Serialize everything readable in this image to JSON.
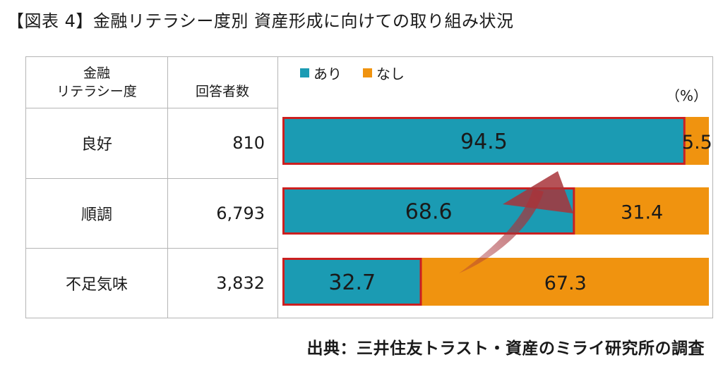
{
  "title": "【図表 4】金融リテラシー度別  資産形成に向けての取り組み状況",
  "table": {
    "col1_header_line1": "金融",
    "col1_header_line2": "リテラシー度",
    "col2_header": "回答者数",
    "rows": [
      {
        "label": "良好",
        "count": "810"
      },
      {
        "label": "順調",
        "count": "6,793"
      },
      {
        "label": "不足気味",
        "count": "3,832"
      }
    ]
  },
  "legend": {
    "yes_label": "あり",
    "no_label": "なし"
  },
  "unit": "（%）",
  "source": "出典：三井住友トラスト・資産のミライ研究所の調査",
  "colors": {
    "yes": "#1b9bb3",
    "no": "#f0930f",
    "highlight_border": "#cc1f1f",
    "arrow": "#a8343a"
  },
  "chart_data": {
    "type": "bar",
    "orientation": "horizontal",
    "stacked": true,
    "categories": [
      "良好",
      "順調",
      "不足気味"
    ],
    "series": [
      {
        "name": "あり",
        "values": [
          94.5,
          68.6,
          32.7
        ]
      },
      {
        "name": "なし",
        "values": [
          5.5,
          31.4,
          67.3
        ]
      }
    ],
    "value_labels": {
      "yes": [
        "94.5",
        "68.6",
        "32.7"
      ],
      "no": [
        "5.5",
        "31.4",
        "67.3"
      ]
    },
    "xlim": [
      0,
      100
    ],
    "legend_position": "top-left",
    "grid": false
  }
}
